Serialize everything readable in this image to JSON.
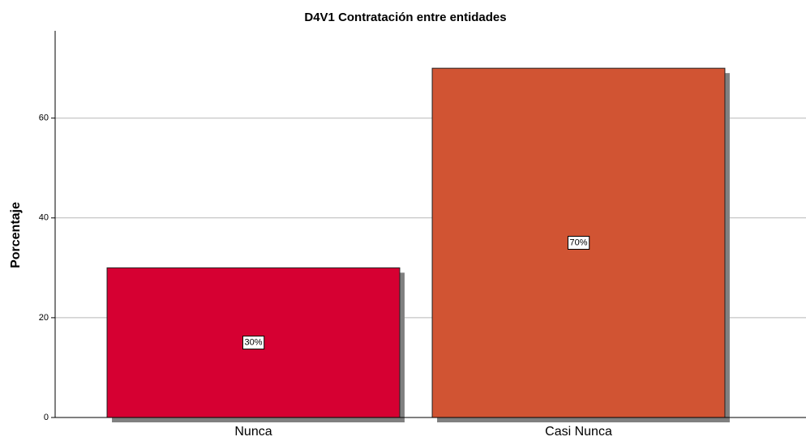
{
  "chart_data": {
    "type": "bar",
    "title": "D4V1 Contratación entre entidades",
    "ylabel": "Porcentaje",
    "categories": [
      "Nunca",
      "Casi Nunca"
    ],
    "values": [
      30,
      70
    ],
    "value_labels": [
      "30%",
      "70%"
    ],
    "colors": [
      "#d60032",
      "#d15433"
    ],
    "ylim": [
      0,
      77.5
    ],
    "yticks": [
      0,
      20,
      40,
      60
    ],
    "grid": true
  }
}
